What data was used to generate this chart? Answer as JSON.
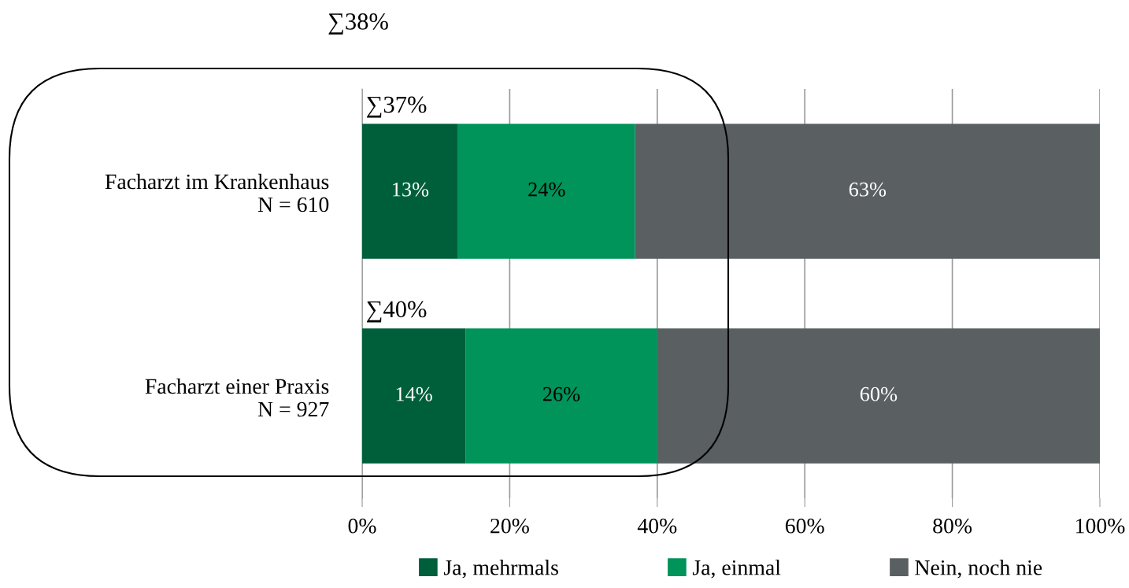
{
  "chart_data": {
    "type": "bar",
    "orientation": "horizontal",
    "stacked": true,
    "categories": [
      "Facharzt im Krankenhaus\nN = 610",
      "Facharzt einer Praxis\nN = 927"
    ],
    "series": [
      {
        "name": "Ja, mehrmals",
        "color": "#005f3b",
        "values": [
          13,
          14
        ]
      },
      {
        "name": "Ja, einmal",
        "color": "#00935a",
        "values": [
          24,
          26
        ]
      },
      {
        "name": "Nein, noch nie",
        "color": "#5a6062",
        "values": [
          63,
          60
        ]
      }
    ],
    "value_labels": [
      [
        "13%",
        "14%"
      ],
      [
        "24%",
        "26%"
      ],
      [
        "63%",
        "60%"
      ]
    ],
    "annotations": [
      "∑38%",
      "∑37%",
      "∑40%"
    ],
    "xlim": [
      0,
      100
    ],
    "xticks": [
      {
        "value": 0,
        "label": "0%"
      },
      {
        "value": 20,
        "label": "20%"
      },
      {
        "value": 40,
        "label": "40%"
      },
      {
        "value": 60,
        "label": "60%"
      },
      {
        "value": 80,
        "label": "80%"
      },
      {
        "value": 100,
        "label": "100%"
      }
    ],
    "grid": "x",
    "legend": "bottom"
  }
}
